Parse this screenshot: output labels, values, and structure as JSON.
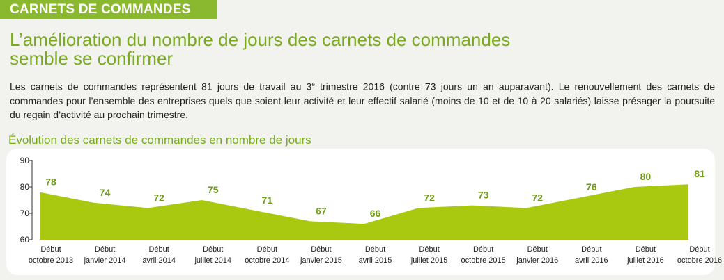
{
  "banner": {
    "label": "CARNETS DE COMMANDES"
  },
  "headline": {
    "line1": "L’amélioration du nombre de jours des carnets de commandes",
    "line2": "semble se confirmer"
  },
  "body": {
    "part1": "Les carnets de commandes représentent 81 jours de travail au 3",
    "sup": "e",
    "part2": " trimestre 2016 (contre 73 jours un an auparavant). Le renouvellement des carnets de commandes pour l’ensemble des entreprises quels que soient leur activité et leur effectif salarié (moins de 10 et de 10 à 20 salariés) laisse présager la poursuite du regain d’activité au prochain trimestre."
  },
  "colors": {
    "accent": "#8ab82e",
    "area": "#a8c90f",
    "headline": "#7aab1f"
  },
  "chart_data": {
    "type": "area",
    "title": "Évolution des carnets de commandes en nombre de jours",
    "categories": [
      [
        "Début",
        "octobre 2013"
      ],
      [
        "Début",
        "janvier 2014"
      ],
      [
        "Début",
        "avril 2014"
      ],
      [
        "Début",
        "juillet 2014"
      ],
      [
        "Début",
        "octobre 2014"
      ],
      [
        "Début",
        "janvier 2015"
      ],
      [
        "Début",
        "avril 2015"
      ],
      [
        "Début",
        "juillet 2015"
      ],
      [
        "Début",
        "octobre 2015"
      ],
      [
        "Début",
        "janvier 2016"
      ],
      [
        "Début",
        "avril 2016"
      ],
      [
        "Début",
        "juillet 2016"
      ],
      [
        "Début",
        "octobre 2016"
      ]
    ],
    "values": [
      78,
      74,
      72,
      75,
      71,
      67,
      66,
      72,
      73,
      72,
      76,
      80,
      81
    ],
    "ylim": [
      60,
      90
    ],
    "yticks": [
      60,
      70,
      80,
      90
    ],
    "grid": false,
    "data_labels": true
  }
}
